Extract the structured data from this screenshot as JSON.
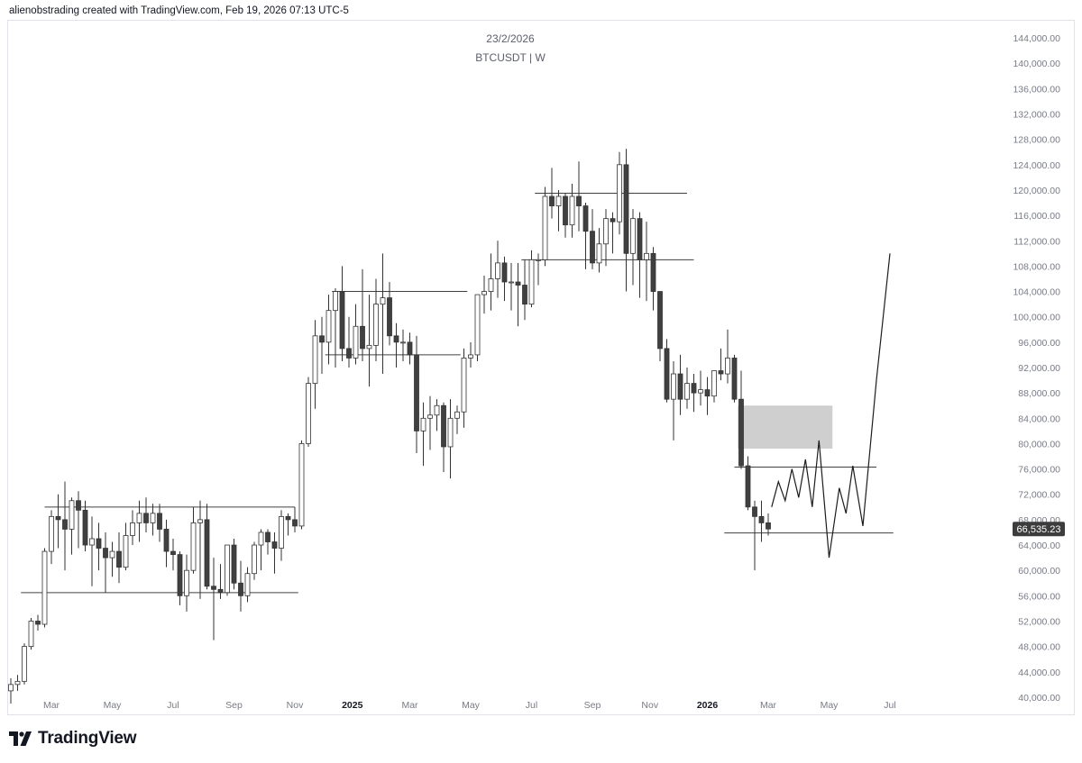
{
  "header": {
    "credit": "alienobstrading created with TradingView.com, Feb 19, 2026 07:13 UTC-5"
  },
  "chart_title": {
    "date": "23/2/2026",
    "symbol": "BTCUSDT | W"
  },
  "footer": {
    "brand": "TradingView"
  },
  "colors": {
    "up_fill": "#ffffff",
    "down_fill": "#404040",
    "wick": "#333333",
    "line": "#404040",
    "zone": "#cfcfcf",
    "price_label_bg": "#3c3c3c"
  },
  "chart_data": {
    "type": "candlestick",
    "timeframe": "W",
    "ylim": [
      38000,
      146000
    ],
    "y_ticks": [
      40000,
      44000,
      48000,
      52000,
      56000,
      60000,
      64000,
      68000,
      72000,
      76000,
      80000,
      84000,
      88000,
      92000,
      96000,
      100000,
      104000,
      108000,
      112000,
      116000,
      120000,
      124000,
      128000,
      132000,
      136000,
      140000,
      144000
    ],
    "y_tick_labels": [
      "40,000.00",
      "44,000.00",
      "48,000.00",
      "52,000.00",
      "56,000.00",
      "60,000.00",
      "64,000.00",
      "68,000.00",
      "72,000.00",
      "76,000.00",
      "80,000.00",
      "84,000.00",
      "88,000.00",
      "92,000.00",
      "96,000.00",
      "100,000.00",
      "104,000.00",
      "108,000.00",
      "112,000.00",
      "116,000.00",
      "120,000.00",
      "124,000.00",
      "128,000.00",
      "132,000.00",
      "136,000.00",
      "140,000.00",
      "144,000.00"
    ],
    "x_ticks": [
      {
        "label": "Mar",
        "week": 6,
        "bold": false
      },
      {
        "label": "May",
        "week": 15,
        "bold": false
      },
      {
        "label": "Jul",
        "week": 24,
        "bold": false
      },
      {
        "label": "Sep",
        "week": 33,
        "bold": false
      },
      {
        "label": "Nov",
        "week": 42,
        "bold": false
      },
      {
        "label": "2025",
        "week": 50.5,
        "bold": true
      },
      {
        "label": "Mar",
        "week": 59,
        "bold": false
      },
      {
        "label": "May",
        "week": 68,
        "bold": false
      },
      {
        "label": "Jul",
        "week": 77,
        "bold": false
      },
      {
        "label": "Sep",
        "week": 86,
        "bold": false
      },
      {
        "label": "Nov",
        "week": 94.5,
        "bold": false
      },
      {
        "label": "2026",
        "week": 103,
        "bold": true
      },
      {
        "label": "Mar",
        "week": 112,
        "bold": false
      },
      {
        "label": "May",
        "week": 121,
        "bold": false
      },
      {
        "label": "Jul",
        "week": 130,
        "bold": false
      }
    ],
    "candles": [
      [
        0,
        41000,
        43000,
        39000,
        42000
      ],
      [
        1,
        42000,
        43500,
        41000,
        42500
      ],
      [
        2,
        42500,
        48500,
        42000,
        48000
      ],
      [
        3,
        48000,
        52500,
        47500,
        52000
      ],
      [
        4,
        52000,
        53000,
        50500,
        51500
      ],
      [
        5,
        51500,
        63500,
        51000,
        63000
      ],
      [
        6,
        63000,
        69500,
        61000,
        68500
      ],
      [
        7,
        68500,
        72000,
        63500,
        68000
      ],
      [
        8,
        68000,
        74000,
        60000,
        66500
      ],
      [
        9,
        66500,
        71500,
        62500,
        71000
      ],
      [
        10,
        71000,
        72500,
        63500,
        69500
      ],
      [
        11,
        69500,
        71000,
        63000,
        64000
      ],
      [
        12,
        64000,
        68500,
        57500,
        65000
      ],
      [
        13,
        65000,
        67500,
        60000,
        63500
      ],
      [
        14,
        63500,
        66000,
        56500,
        62000
      ],
      [
        15,
        62000,
        64500,
        59000,
        63000
      ],
      [
        16,
        63000,
        66000,
        58000,
        60500
      ],
      [
        17,
        60500,
        67500,
        60000,
        65500
      ],
      [
        18,
        65500,
        69500,
        64000,
        67500
      ],
      [
        19,
        67500,
        71000,
        64500,
        69000
      ],
      [
        20,
        69000,
        71500,
        66000,
        67500
      ],
      [
        21,
        67500,
        70500,
        65500,
        69000
      ],
      [
        22,
        69000,
        70500,
        64500,
        66500
      ],
      [
        23,
        66500,
        68000,
        60500,
        63000
      ],
      [
        24,
        63000,
        65000,
        60000,
        62500
      ],
      [
        25,
        62500,
        63000,
        54500,
        56000
      ],
      [
        26,
        56000,
        62500,
        53500,
        60000
      ],
      [
        27,
        60000,
        70000,
        59500,
        67500
      ],
      [
        28,
        67500,
        71000,
        55500,
        68000
      ],
      [
        29,
        68000,
        70500,
        57000,
        57500
      ],
      [
        30,
        57500,
        62000,
        49000,
        57000
      ],
      [
        31,
        57000,
        61000,
        55500,
        56500
      ],
      [
        32,
        56500,
        64000,
        56000,
        64000
      ],
      [
        33,
        64000,
        65000,
        57000,
        58000
      ],
      [
        34,
        58000,
        61500,
        53500,
        56000
      ],
      [
        35,
        56000,
        60500,
        55000,
        59500
      ],
      [
        36,
        59500,
        64500,
        58500,
        64000
      ],
      [
        37,
        64000,
        66500,
        60000,
        66000
      ],
      [
        38,
        66000,
        66500,
        62500,
        64500
      ],
      [
        39,
        64500,
        66000,
        59500,
        63500
      ],
      [
        40,
        63500,
        69500,
        61500,
        68500
      ],
      [
        41,
        68500,
        69000,
        65500,
        68000
      ],
      [
        42,
        68000,
        70000,
        66000,
        67000
      ],
      [
        43,
        67000,
        80500,
        66500,
        80000
      ],
      [
        44,
        80000,
        90500,
        79500,
        89500
      ],
      [
        45,
        89500,
        99500,
        85500,
        97000
      ],
      [
        46,
        97000,
        100000,
        91000,
        96000
      ],
      [
        47,
        96000,
        103500,
        92500,
        101000
      ],
      [
        48,
        101000,
        104500,
        92000,
        104000
      ],
      [
        49,
        104000,
        108000,
        93000,
        95000
      ],
      [
        50,
        95000,
        100000,
        92000,
        93500
      ],
      [
        51,
        93500,
        102000,
        92500,
        98500
      ],
      [
        52,
        98500,
        107500,
        93000,
        95000
      ],
      [
        53,
        95000,
        103500,
        89000,
        95500
      ],
      [
        54,
        95500,
        106000,
        93000,
        102000
      ],
      [
        55,
        102000,
        110000,
        91000,
        103000
      ],
      [
        56,
        103000,
        105500,
        95500,
        97000
      ],
      [
        57,
        97000,
        99000,
        92000,
        96000
      ],
      [
        58,
        96000,
        98000,
        93000,
        96000
      ],
      [
        59,
        96000,
        97500,
        92500,
        94000
      ],
      [
        60,
        94000,
        97000,
        78500,
        82000
      ],
      [
        61,
        82000,
        86500,
        76500,
        84000
      ],
      [
        62,
        84000,
        87500,
        79000,
        84500
      ],
      [
        63,
        84500,
        87000,
        82000,
        86000
      ],
      [
        64,
        86000,
        86500,
        75500,
        79500
      ],
      [
        65,
        79500,
        87000,
        74500,
        84000
      ],
      [
        66,
        84000,
        86000,
        81500,
        85000
      ],
      [
        67,
        85000,
        95000,
        82500,
        93500
      ],
      [
        68,
        93500,
        96000,
        92000,
        94000
      ],
      [
        69,
        94000,
        102500,
        93000,
        103500
      ],
      [
        70,
        103500,
        106500,
        100500,
        104000
      ],
      [
        71,
        104000,
        110000,
        101000,
        106000
      ],
      [
        72,
        106000,
        112000,
        103000,
        108500
      ],
      [
        73,
        108500,
        109500,
        102500,
        105500
      ],
      [
        74,
        105500,
        108500,
        101000,
        105500
      ],
      [
        75,
        105500,
        108500,
        98500,
        105000
      ],
      [
        76,
        105000,
        109000,
        99500,
        102000
      ],
      [
        77,
        102000,
        110500,
        101500,
        109000
      ],
      [
        78,
        109000,
        110000,
        105000,
        109000
      ],
      [
        79,
        109000,
        120500,
        108000,
        119000
      ],
      [
        80,
        119000,
        123500,
        115500,
        117500
      ],
      [
        81,
        117500,
        120000,
        113500,
        119000
      ],
      [
        82,
        119000,
        119500,
        112500,
        114500
      ],
      [
        83,
        114500,
        121000,
        112500,
        119000
      ],
      [
        84,
        119000,
        124500,
        113500,
        117500
      ],
      [
        85,
        117500,
        118000,
        107500,
        113500
      ],
      [
        86,
        113500,
        117000,
        107500,
        108500
      ],
      [
        87,
        108500,
        114000,
        107000,
        111500
      ],
      [
        88,
        111500,
        117000,
        108000,
        115500
      ],
      [
        89,
        115500,
        116500,
        110000,
        115000
      ],
      [
        90,
        115000,
        126000,
        113000,
        124000
      ],
      [
        91,
        124000,
        126500,
        104000,
        110000
      ],
      [
        92,
        110000,
        117000,
        105000,
        115500
      ],
      [
        93,
        115500,
        116500,
        103000,
        109000
      ],
      [
        94,
        109000,
        115000,
        102500,
        110000
      ],
      [
        95,
        110000,
        111000,
        101000,
        104000
      ],
      [
        96,
        104000,
        104000,
        93000,
        95000
      ],
      [
        97,
        95000,
        96500,
        86500,
        87000
      ],
      [
        98,
        87000,
        93000,
        80500,
        91000
      ],
      [
        99,
        91000,
        94000,
        84500,
        87000
      ],
      [
        100,
        87000,
        92000,
        85500,
        89500
      ],
      [
        101,
        89500,
        91000,
        85000,
        88000
      ],
      [
        102,
        88000,
        91500,
        86000,
        88500
      ],
      [
        103,
        88500,
        90500,
        84500,
        87500
      ],
      [
        104,
        87500,
        91500,
        86500,
        91500
      ],
      [
        105,
        91500,
        95000,
        90000,
        91000
      ],
      [
        106,
        91000,
        98000,
        89500,
        93500
      ],
      [
        107,
        93500,
        94000,
        86500,
        87000
      ],
      [
        108,
        87000,
        91500,
        76000,
        76500
      ],
      [
        109,
        76500,
        78000,
        69500,
        70000
      ],
      [
        110,
        70000,
        71000,
        60000,
        68500
      ],
      [
        111,
        68500,
        71000,
        64500,
        67500
      ],
      [
        112,
        67500,
        69000,
        65500,
        66535
      ]
    ],
    "current_price": 66535.23,
    "current_price_label": "66,535.23",
    "horizontal_levels": [
      {
        "price": 70000,
        "from_week": 5,
        "to_week": 42
      },
      {
        "price": 56500,
        "from_week": 1.5,
        "to_week": 42.5
      },
      {
        "price": 104000,
        "from_week": 47.5,
        "to_week": 67.5
      },
      {
        "price": 94000,
        "from_week": 46.5,
        "to_week": 66.5
      },
      {
        "price": 119500,
        "from_week": 77.5,
        "to_week": 100
      },
      {
        "price": 109000,
        "from_week": 75.5,
        "to_week": 101
      },
      {
        "price": 76300,
        "from_week": 107,
        "to_week": 128
      },
      {
        "price": 65900,
        "from_week": 105.5,
        "to_week": 130.5
      }
    ],
    "zone": {
      "from_week": 107.5,
      "to_week": 121.5,
      "price_top": 86000,
      "price_bottom": 79200
    },
    "projection": [
      [
        112.5,
        70000
      ],
      [
        113.5,
        74000
      ],
      [
        114.5,
        71000
      ],
      [
        115.5,
        76000
      ],
      [
        116.5,
        71500
      ],
      [
        117.5,
        77500
      ],
      [
        118.5,
        70000
      ],
      [
        119.5,
        80500
      ],
      [
        121,
        62000
      ],
      [
        122.5,
        73000
      ],
      [
        123.5,
        69000
      ],
      [
        124.5,
        76500
      ],
      [
        126,
        67000
      ],
      [
        128,
        90000
      ],
      [
        130,
        110000
      ]
    ]
  }
}
